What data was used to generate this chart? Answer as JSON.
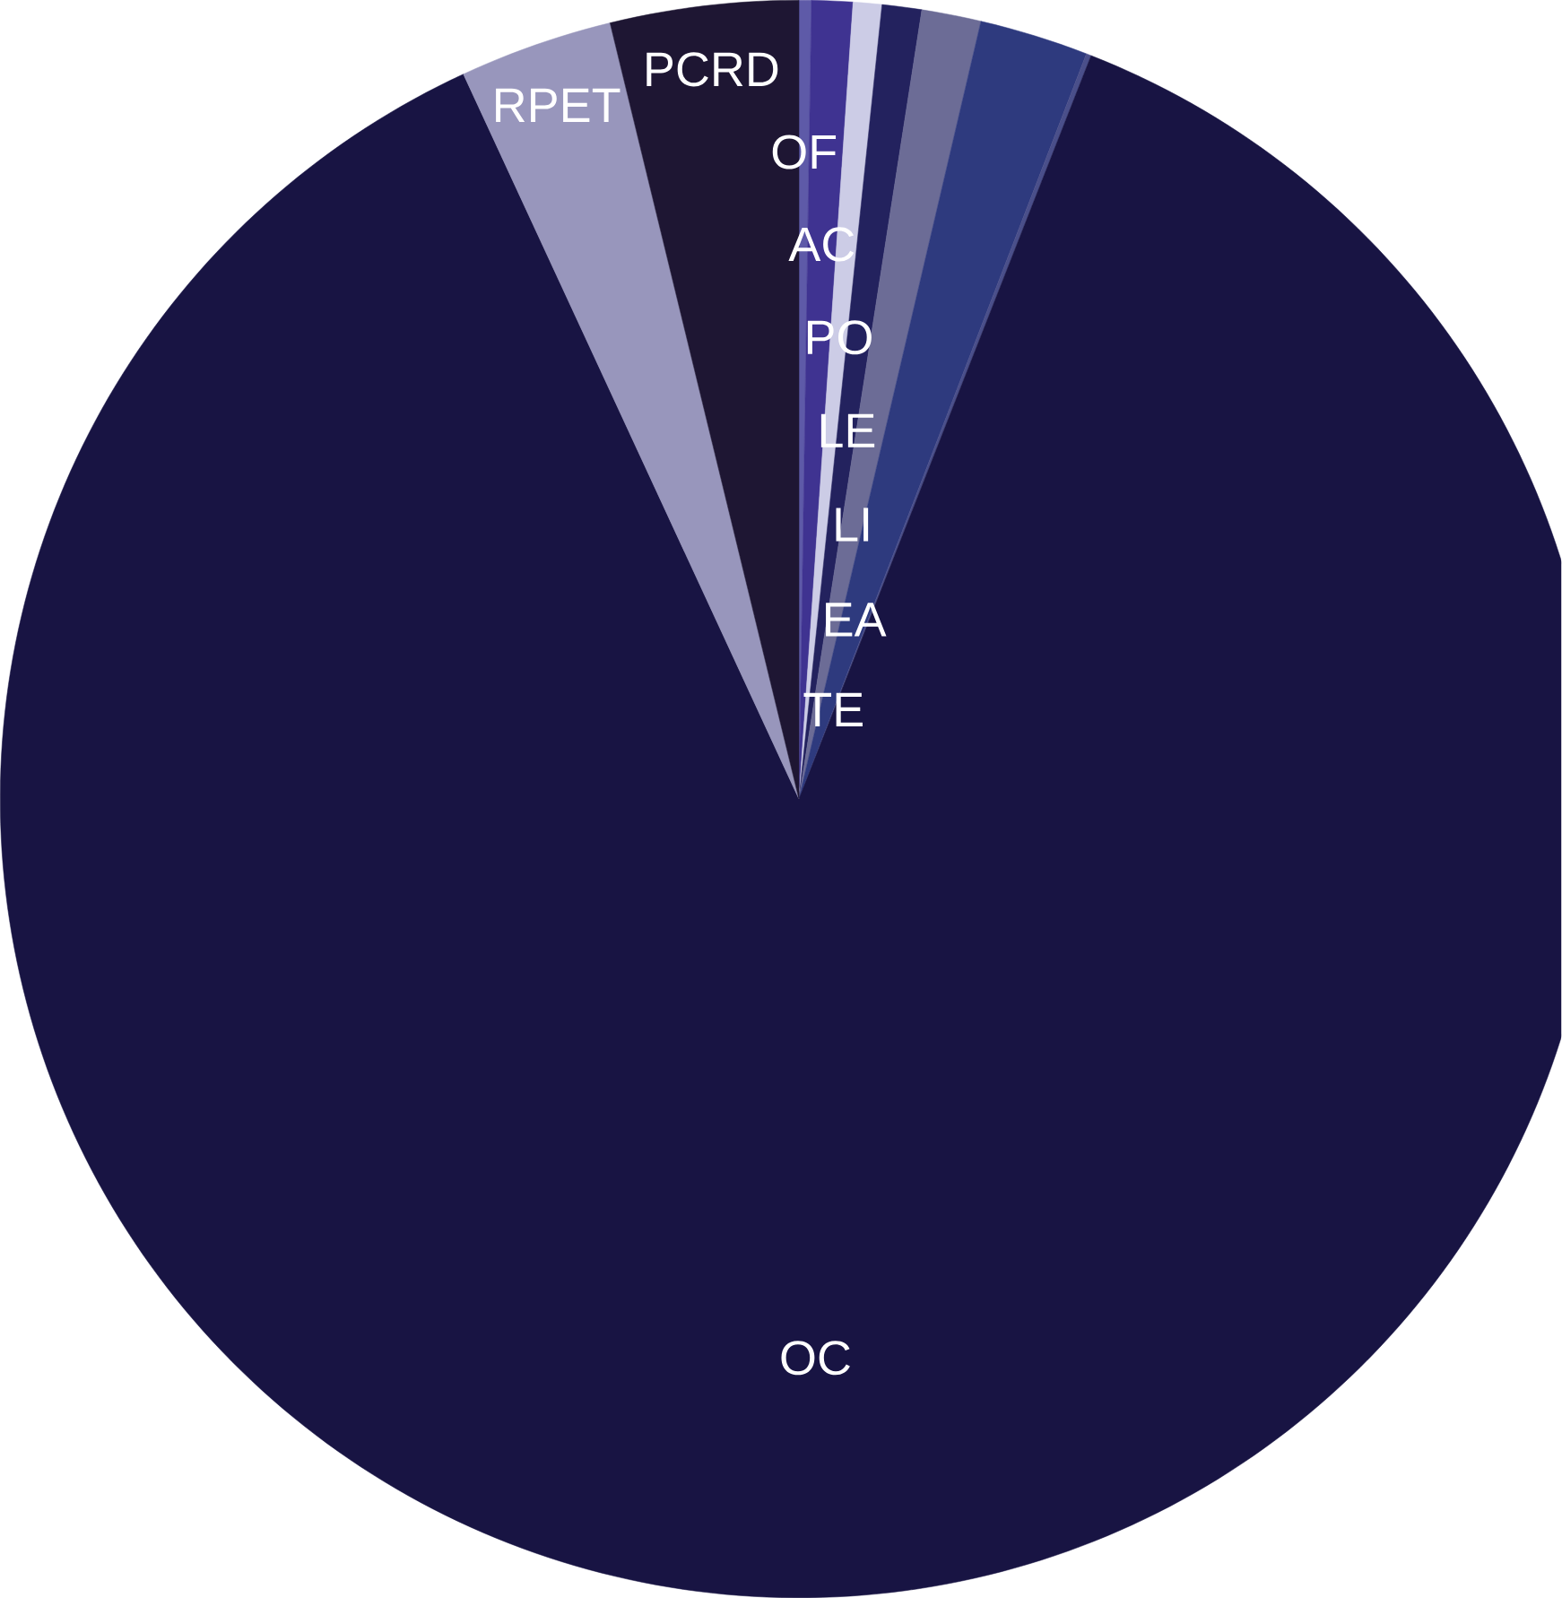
{
  "chart_data": {
    "type": "pie",
    "categories": [
      "OF",
      "AC",
      "PO",
      "LE",
      "LI",
      "EA",
      "TE",
      "OC",
      "RPET",
      "PCRD"
    ],
    "values": [
      0.25,
      0.83,
      0.58,
      0.8,
      1.2,
      2.2,
      0.1,
      87.14,
      3.1,
      3.8
    ],
    "colors": [
      "#5e5aa8",
      "#3f3391",
      "#cccce6",
      "#23225e",
      "#6c6c96",
      "#2e3a7e",
      "#4a4f8a",
      "#181443",
      "#9896bc",
      "#1e1633"
    ]
  }
}
